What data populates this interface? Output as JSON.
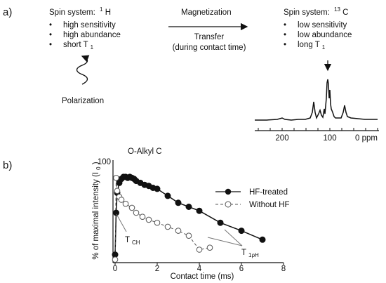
{
  "panel_a": {
    "label": "a)",
    "left_title": "Spin system:",
    "left_nucleus_sup": "1",
    "left_nucleus": "H",
    "left_bullets": [
      "high sensitivity",
      "high abundance",
      "short T"
    ],
    "left_t1_sub": "1",
    "polarization": "Polarization",
    "arrow_top": "Magnetization",
    "arrow_bottom_1": "Transfer",
    "arrow_bottom_2": "(during contact time)",
    "right_title": "Spin system:",
    "right_nucleus_sup": "13",
    "right_nucleus": "C",
    "right_bullets": [
      "low sensitivity",
      "low abundance",
      "long T"
    ],
    "right_t1_sub": "1",
    "spectrum_ticks": [
      "200",
      "100",
      "0 ppm"
    ]
  },
  "panel_b": {
    "label": "b)",
    "title": "O-Alkyl C",
    "ylabel": "% of maximal intensity (I",
    "ylabel_sub": "0",
    "ylabel_end": ")",
    "xlabel": "Contact time (ms)",
    "ytick": "100",
    "xticks": [
      "0",
      "2",
      "4",
      "6",
      "8"
    ],
    "legend": [
      "HF-treated",
      "Without HF"
    ],
    "t_ch": "T",
    "t_ch_sub": "CH",
    "t_1rho": "T",
    "t_1rho_sub": "1ρH"
  },
  "chart_data": {
    "type": "scatter",
    "title": "O-Alkyl C",
    "xlabel": "Contact time (ms)",
    "ylabel": "% of maximal intensity (I0)",
    "xlim": [
      0,
      8
    ],
    "ylim": [
      0,
      100
    ],
    "series": [
      {
        "name": "HF-treated",
        "marker": "filled-circle",
        "x": [
          0,
          0.05,
          0.1,
          0.2,
          0.3,
          0.4,
          0.5,
          0.6,
          0.7,
          0.8,
          0.9,
          1.0,
          1.2,
          1.4,
          1.6,
          1.8,
          2.0,
          2.5,
          3.0,
          3.5,
          4.0,
          5.0,
          6.0,
          7.0
        ],
        "y": [
          8,
          50,
          70,
          80,
          84,
          86,
          86,
          85,
          86,
          85,
          84,
          82,
          80,
          78,
          77,
          75,
          74,
          67,
          60,
          56,
          52,
          40,
          32,
          23
        ]
      },
      {
        "name": "Without HF",
        "marker": "open-circle",
        "x": [
          0,
          0.05,
          0.1,
          0.2,
          0.3,
          0.5,
          0.8,
          1.0,
          1.3,
          1.6,
          2.0,
          2.5,
          3.0,
          3.5,
          4.0,
          4.5
        ],
        "y": [
          3,
          85,
          72,
          66,
          63,
          59,
          55,
          50,
          46,
          43,
          40,
          36,
          32,
          27,
          13,
          15
        ]
      }
    ]
  }
}
